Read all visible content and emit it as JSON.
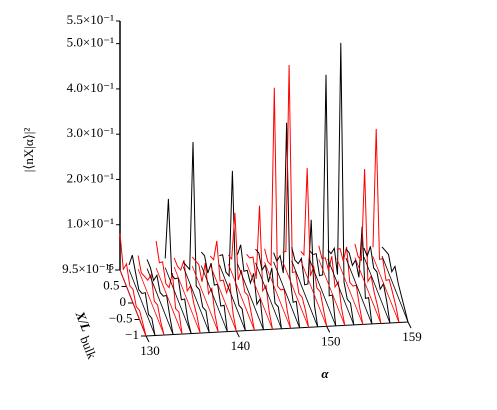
{
  "chart_data": {
    "type": "waterfall3d",
    "z_label": "|⟨nX|α⟩|²",
    "x_label": "α",
    "depth_label": "X/L",
    "depth_label_sub": "bulk",
    "x": [
      130,
      131,
      132,
      133,
      134,
      135,
      136,
      137,
      138,
      139,
      140,
      141,
      142,
      143,
      144,
      145,
      146,
      147,
      148,
      149,
      150,
      151,
      152,
      153,
      154,
      155,
      156,
      157,
      158,
      159
    ],
    "depth": [
      -1,
      -0.75,
      -0.5,
      -0.25,
      0,
      0.25,
      0.5,
      0.75,
      1
    ],
    "line_colors": [
      "#ff0000",
      "#000000"
    ],
    "z": [
      [
        0,
        0.01,
        0.02,
        0.01,
        0.03,
        0.02,
        0.05,
        0.02,
        0.08
      ],
      [
        0,
        0.02,
        0.01,
        0.04,
        0.02,
        0.01,
        0.03,
        0.05,
        0.01
      ],
      [
        0,
        0.01,
        0.03,
        0.02,
        0.06,
        0.03,
        0.02,
        0.01,
        0.03
      ],
      [
        0,
        0.02,
        0.05,
        0.03,
        0.02,
        0.04,
        0.01,
        0.02,
        0.02
      ],
      [
        0,
        0.03,
        0.02,
        0.08,
        0.03,
        0.02,
        0.05,
        0.03,
        0.06
      ],
      [
        0,
        0.01,
        0.04,
        0.02,
        0.05,
        0.03,
        0.02,
        0.17,
        0.02
      ],
      [
        0,
        0.02,
        0.03,
        0.05,
        0.02,
        0.07,
        0.03,
        0.02,
        0.02
      ],
      [
        0,
        0.03,
        0.02,
        0.04,
        0.03,
        0.33,
        0.03,
        0.02,
        0.01
      ],
      [
        0,
        0.02,
        0.06,
        0.03,
        0.08,
        0.02,
        0.04,
        0.03,
        0.02
      ],
      [
        0,
        0.04,
        0.02,
        0.05,
        0.03,
        0.06,
        0.02,
        0.04,
        0.03
      ],
      [
        0,
        0.02,
        0.07,
        0.03,
        0.04,
        0.02,
        0.09,
        0.03,
        0.02
      ],
      [
        0,
        0.03,
        0.02,
        0.05,
        0.28,
        0.03,
        0.02,
        0.04,
        0.02
      ],
      [
        0,
        0.02,
        0.04,
        0.03,
        0.06,
        0.02,
        0.15,
        0.03,
        0.02
      ],
      [
        0,
        0.05,
        0.02,
        0.07,
        0.03,
        0.04,
        0.02,
        0.06,
        0.02
      ],
      [
        0,
        0.02,
        0.06,
        0.03,
        0.2,
        0.02,
        0.05,
        0.03,
        0.02
      ],
      [
        0,
        0.03,
        0.02,
        0.08,
        0.03,
        0.05,
        0.02,
        0.04,
        0.03
      ],
      [
        0,
        0.02,
        0.05,
        0.03,
        0.02,
        0.44,
        0.03,
        0.02,
        0.03
      ],
      [
        0,
        0.04,
        0.02,
        0.06,
        0.38,
        0.03,
        0.05,
        0.02,
        0.02
      ],
      [
        0,
        0.02,
        0.03,
        0.02,
        0.05,
        0.03,
        0.47,
        0.04,
        0.02
      ],
      [
        0,
        0.03,
        0.2,
        0.04,
        0.02,
        0.06,
        0.03,
        0.02,
        0.03
      ],
      [
        0,
        0.02,
        0.04,
        0.03,
        0.06,
        0.02,
        0.24,
        0.03,
        0.02
      ],
      [
        0,
        0.05,
        0.03,
        0.5,
        0.04,
        0.02,
        0.05,
        0.03,
        0.02
      ],
      [
        0,
        0.02,
        0.06,
        0.03,
        0.08,
        0.03,
        0.04,
        0.02,
        0.03
      ],
      [
        0,
        0.03,
        0.02,
        0.04,
        0.55,
        0.02,
        0.06,
        0.03,
        0.02
      ],
      [
        0,
        0.02,
        0.05,
        0.03,
        0.02,
        0.08,
        0.03,
        0.04,
        0.02
      ],
      [
        0,
        0.04,
        0.02,
        0.16,
        0.03,
        0.05,
        0.02,
        0.03,
        0.02
      ],
      [
        0,
        0.02,
        0.03,
        0.05,
        0.02,
        0.25,
        0.03,
        0.02,
        0.03
      ],
      [
        0,
        0.03,
        0.05,
        0.02,
        0.04,
        0.03,
        0.06,
        0.02,
        0.02
      ],
      [
        0,
        0.02,
        0.03,
        0.04,
        0.02,
        0.05,
        0.03,
        0.3,
        0.02
      ],
      [
        0,
        0.01,
        0.02,
        0.03,
        0.05,
        0.02,
        0.04,
        0.03,
        0.02
      ]
    ],
    "zlim": [
      9.5e-15,
      0.55
    ],
    "zticks": [
      {
        "value": 9.5e-15,
        "label": "9.5×10⁻¹⁵"
      },
      {
        "value": 0.1,
        "label": "1.0×10⁻¹"
      },
      {
        "value": 0.2,
        "label": "2.0×10⁻¹"
      },
      {
        "value": 0.3,
        "label": "3.0×10⁻¹"
      },
      {
        "value": 0.4,
        "label": "4.0×10⁻¹"
      },
      {
        "value": 0.5,
        "label": "5.0×10⁻¹"
      },
      {
        "value": 0.55,
        "label": "5.5×10⁻¹"
      }
    ],
    "xlim": [
      130,
      159
    ],
    "xticks": [
      130,
      140,
      150,
      159
    ],
    "depthlim": [
      -1,
      1
    ],
    "depthticks": [
      {
        "value": -1,
        "label": "−1"
      },
      {
        "value": -0.5,
        "label": "−0.5"
      },
      0,
      0.5,
      1
    ]
  }
}
